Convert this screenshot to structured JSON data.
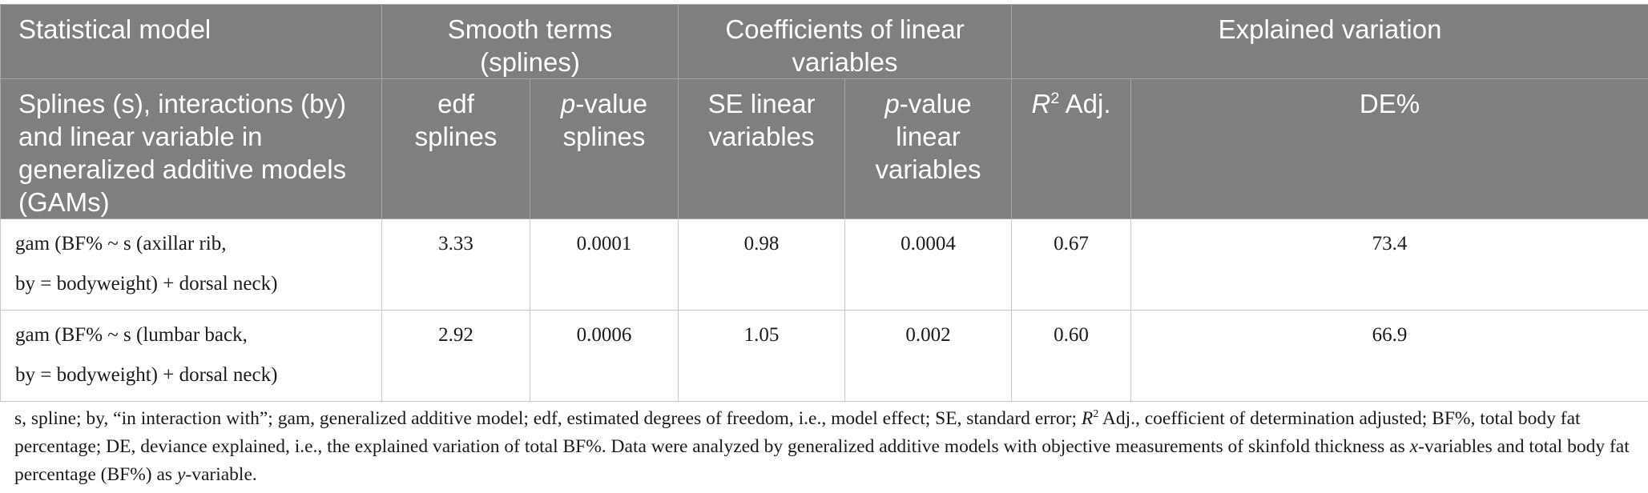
{
  "table": {
    "group_headers": {
      "model": "Statistical model",
      "smooth": "Smooth terms (splines)",
      "coef": "Coefficients of linear variables",
      "explained": "Explained variation"
    },
    "sub_headers": {
      "model": "Splines (s), interactions (by) and linear variable in generalized additive models (GAMs)",
      "edf": "edf splines",
      "p_splines_italic": "p",
      "p_splines_rest": "-value splines",
      "se": "SE linear variables",
      "p_linear_italic": "p",
      "p_linear_rest": "-value linear variables",
      "r2_italic": "R",
      "r2_sup": "2",
      "r2_rest": " Adj.",
      "de": "DE%"
    },
    "rows": [
      {
        "model_line1": "gam (BF% ~ s (axillar rib,",
        "model_line2": "by = bodyweight) + dorsal neck)",
        "edf": "3.33",
        "p_splines": "0.0001",
        "se": "0.98",
        "p_linear": "0.0004",
        "r2": "0.67",
        "de": "73.4"
      },
      {
        "model_line1": "gam (BF% ~ s (lumbar back,",
        "model_line2": "by = bodyweight) + dorsal neck)",
        "edf": "2.92",
        "p_splines": "0.0006",
        "se": "1.05",
        "p_linear": "0.002",
        "r2": "0.60",
        "de": "66.9"
      }
    ]
  },
  "footnote": {
    "p1": "s, spline; by, “in interaction with”; gam, generalized additive model; edf, estimated degrees of freedom, i.e., model effect; SE, standard error; ",
    "r": "R",
    "r_sup": "2",
    "p2": " Adj., coefficient of determination adjusted; BF%, total body fat percentage; DE, deviance explained, i.e., the explained variation of total BF%. Data were analyzed by generalized additive models with objective measurements of skinfold thickness as ",
    "x": "x",
    "p3": "-variables and total body fat percentage (BF%) as ",
    "y": "y",
    "p4": "-variable."
  },
  "colors": {
    "header_bg": "#7f7f7f",
    "header_text": "#ffffff",
    "grid": "#c8c8c8"
  }
}
